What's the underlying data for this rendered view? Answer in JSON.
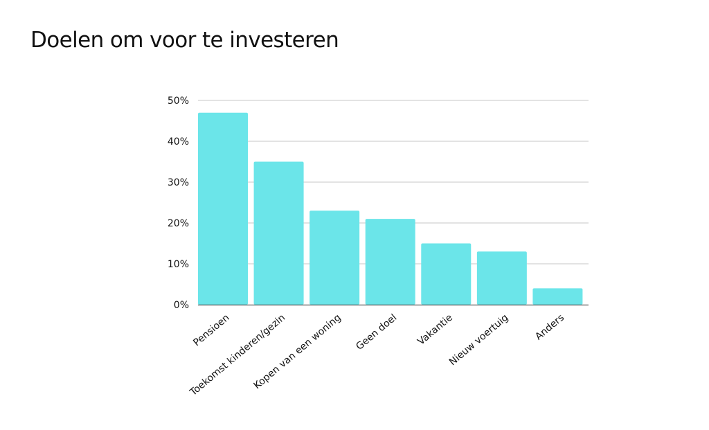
{
  "chart_data": {
    "type": "bar",
    "title": "Doelen om voor te investeren",
    "categories": [
      "Pensioen",
      "Toekomst kinderen/gezin",
      "Kopen van een woning",
      "Geen doel",
      "Vakantie",
      "Nieuw voertuig",
      "Anders"
    ],
    "values": [
      47,
      35,
      23,
      21,
      15,
      13,
      4
    ],
    "ylim": [
      0,
      50
    ],
    "yticks": [
      0,
      10,
      20,
      30,
      40,
      50
    ],
    "ytick_labels": [
      "0%",
      "10%",
      "20%",
      "30%",
      "40%",
      "50%"
    ],
    "grid": true,
    "legend": "none",
    "bar_color": "#6be5e9",
    "grid_color": "#c7c7c7",
    "axis_color": "#555555"
  }
}
